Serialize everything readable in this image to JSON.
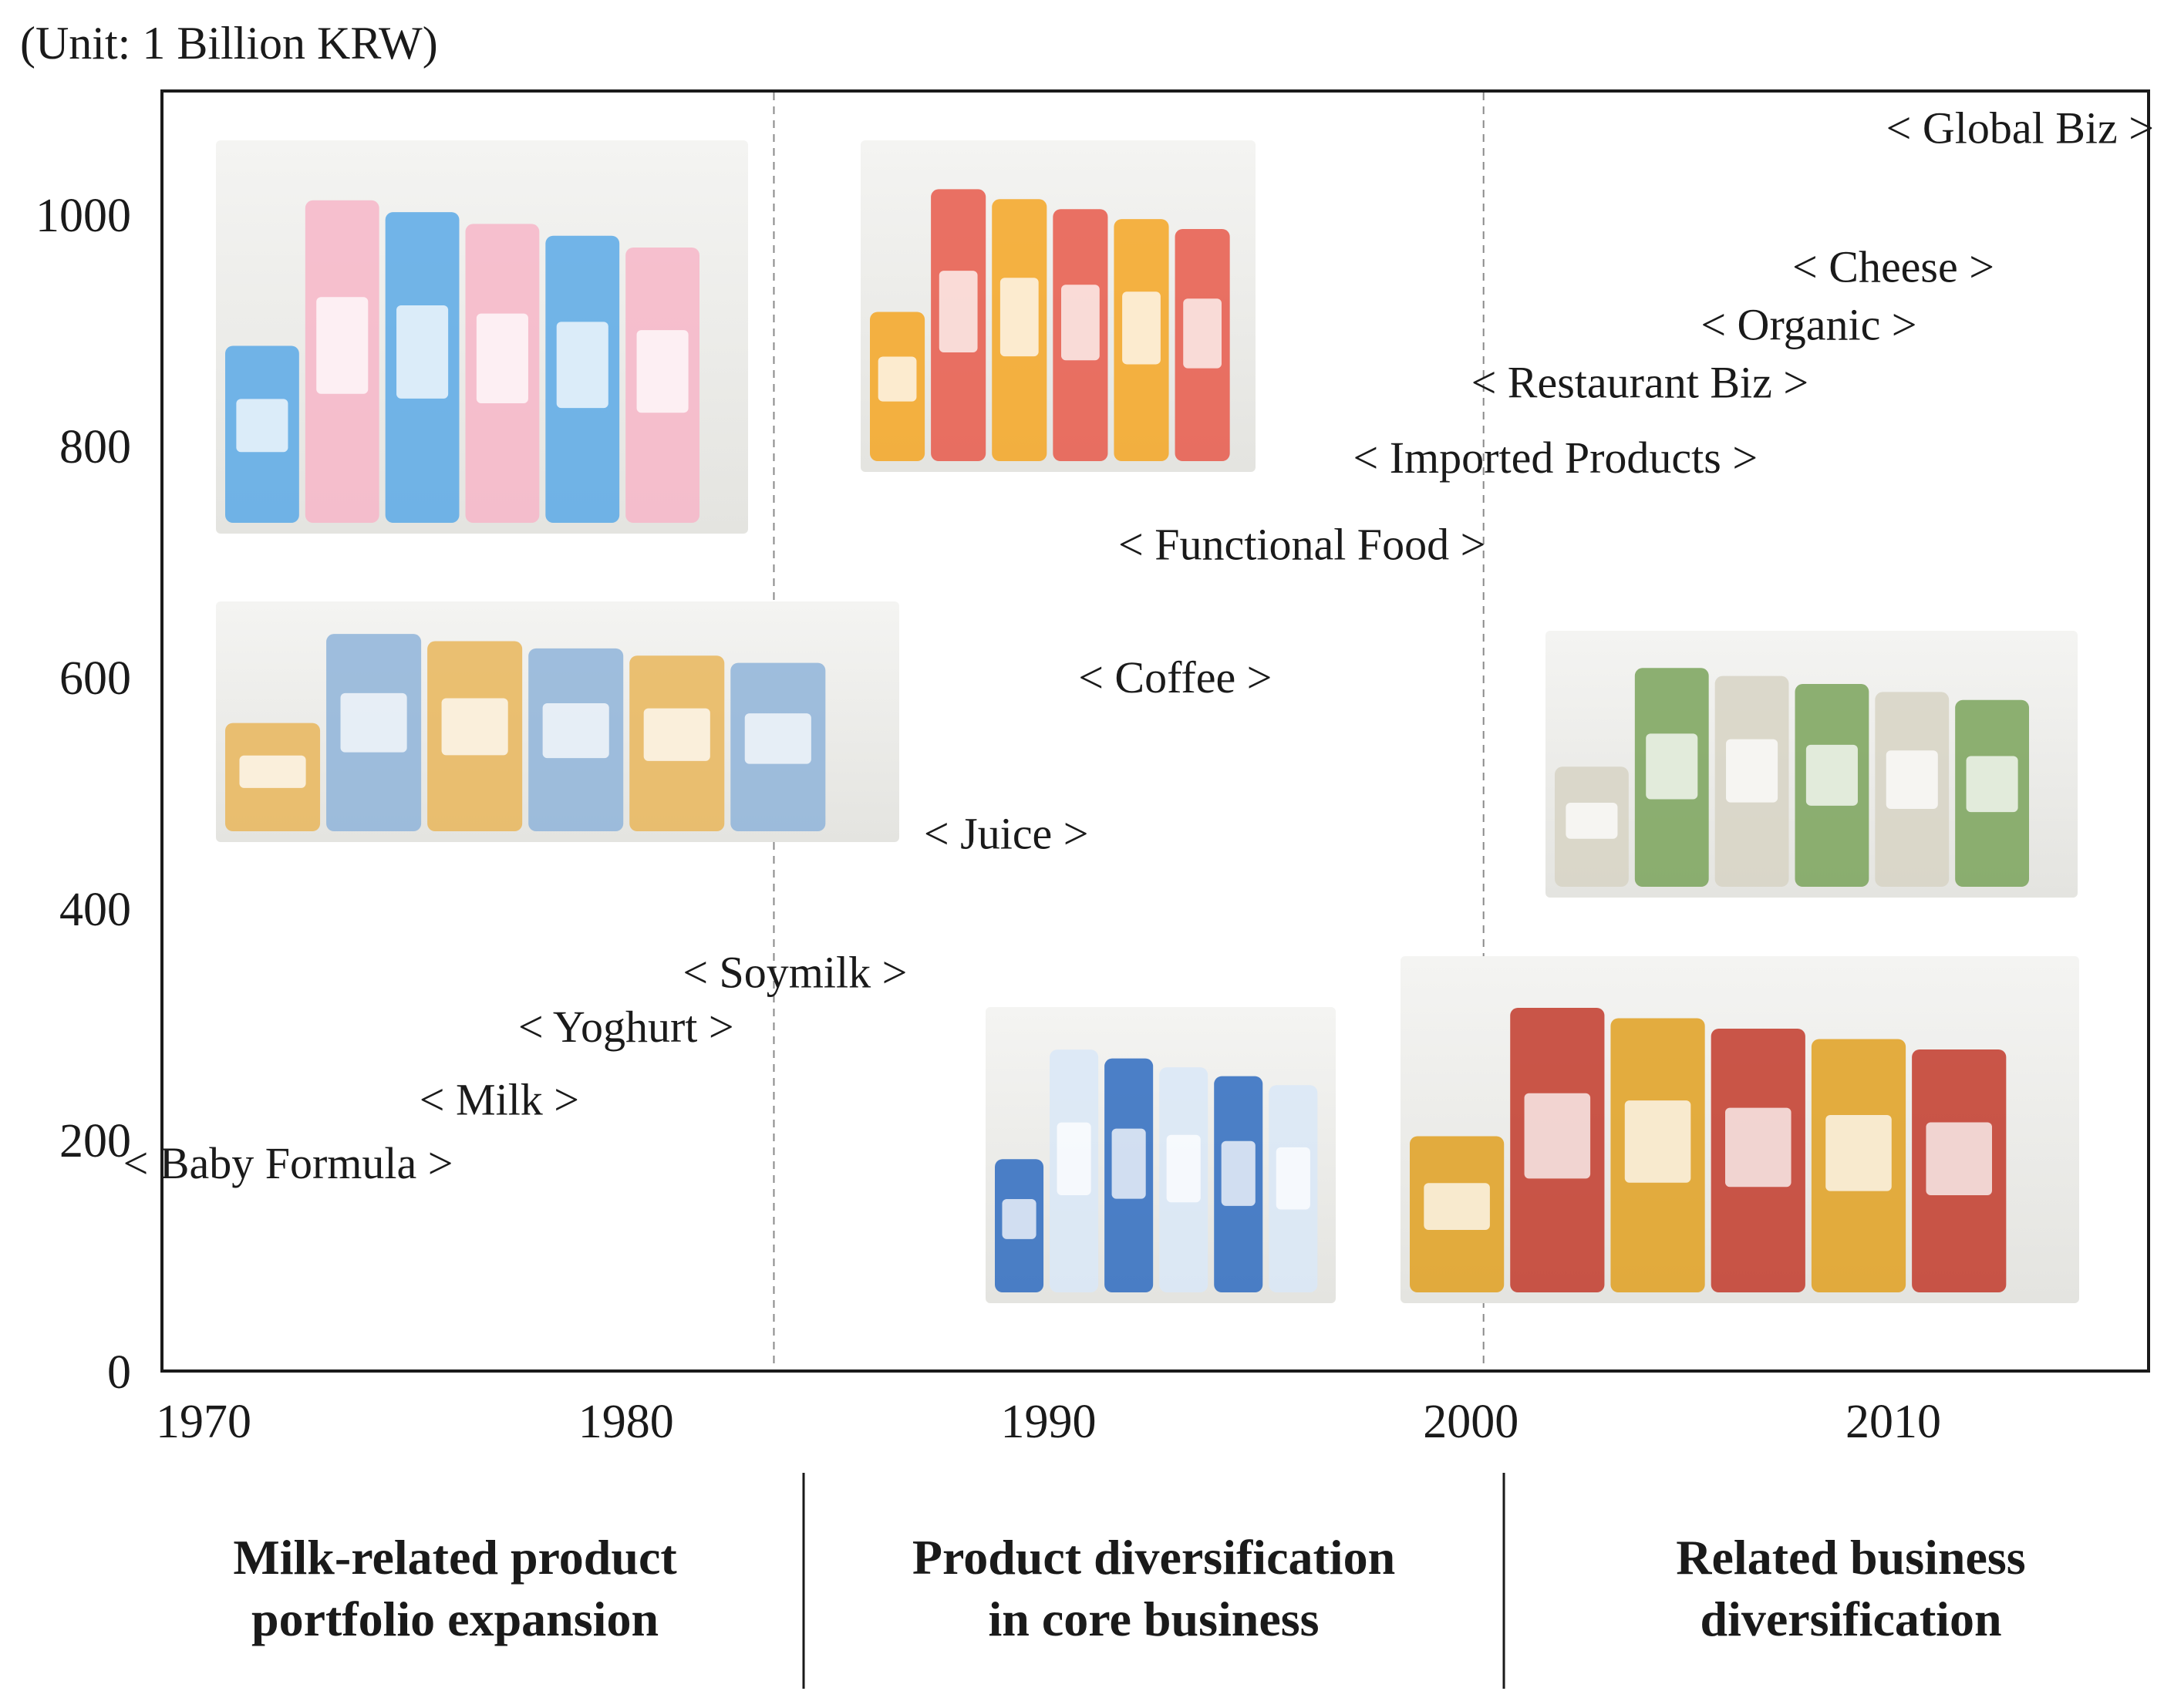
{
  "unit_label": "(Unit: 1 Billion KRW)",
  "chart_data": {
    "type": "scatter",
    "title": "",
    "xlabel": "",
    "ylabel": "",
    "xlim": [
      1968,
      2016
    ],
    "ylim": [
      0,
      1100
    ],
    "x_ticks": [
      1970,
      1980,
      1990,
      2000,
      2010
    ],
    "y_ticks": [
      0,
      200,
      400,
      600,
      800,
      1000
    ],
    "grid": false,
    "phase_dividers": [
      1983.5,
      2000.3
    ],
    "milestones": [
      {
        "label": "< Baby Formula >",
        "x": 1972,
        "y": 180
      },
      {
        "label": "< Milk >",
        "x": 1977,
        "y": 235
      },
      {
        "label": "< Yoghurt >",
        "x": 1980,
        "y": 298
      },
      {
        "label": "< Soymilk >",
        "x": 1984,
        "y": 345
      },
      {
        "label": "< Juice >",
        "x": 1989,
        "y": 465
      },
      {
        "label": "< Coffee >",
        "x": 1993,
        "y": 600
      },
      {
        "label": "< Functional Food >",
        "x": 1996,
        "y": 715
      },
      {
        "label": "< Imported Products >",
        "x": 2002,
        "y": 790
      },
      {
        "label": "< Restaurant Biz >",
        "x": 2004,
        "y": 855
      },
      {
        "label": "< Organic >",
        "x": 2008,
        "y": 905
      },
      {
        "label": "< Cheese >",
        "x": 2010,
        "y": 955
      },
      {
        "label": "< Global Biz >",
        "x": 2013,
        "y": 1075
      }
    ],
    "phases": [
      {
        "line1": "Milk-related product",
        "line2": "portfolio expansion"
      },
      {
        "line1": "Product diversification",
        "line2": "in core business"
      },
      {
        "line1": "Related business",
        "line2": "diversification"
      }
    ]
  },
  "photos": [
    {
      "name": "milk-cartons-photo",
      "accent": "#5aa9e6",
      "accent2": "#f7b6c8"
    },
    {
      "name": "juice-bottles-photo",
      "accent": "#f4a623",
      "accent2": "#e8594a"
    },
    {
      "name": "infant-formula-photo",
      "accent": "#e9b65a",
      "accent2": "#8fb4d9"
    },
    {
      "name": "organic-milk-photo",
      "accent": "#d7d3c4",
      "accent2": "#7aa35a"
    },
    {
      "name": "yoghurt-photo",
      "accent": "#2e6bbf",
      "accent2": "#d9e8f7"
    },
    {
      "name": "cheese-photo",
      "accent": "#e0a020",
      "accent2": "#c23a2a"
    }
  ]
}
